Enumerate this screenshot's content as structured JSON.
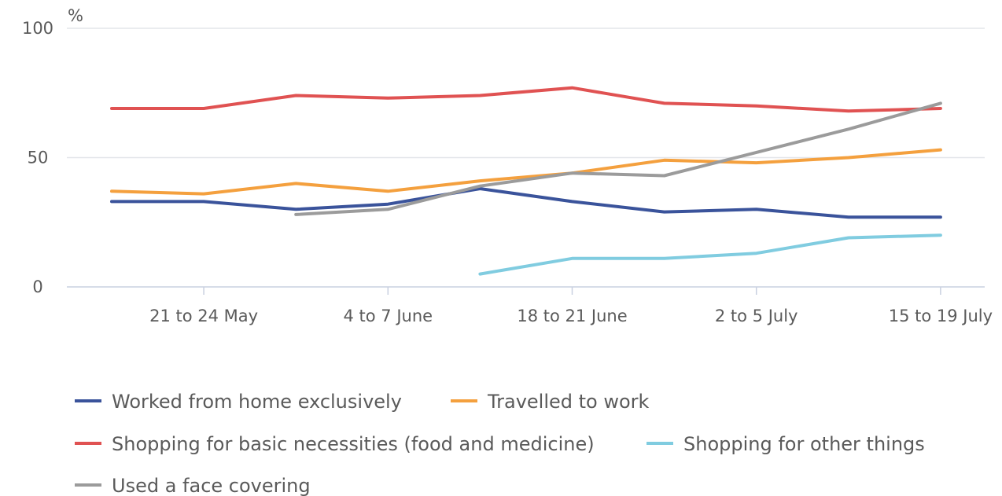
{
  "chart_data": {
    "type": "line",
    "unit_label": "%",
    "ylim": [
      0,
      100
    ],
    "y_ticks": [
      0,
      50,
      100
    ],
    "grid": true,
    "legend_placement": "bottom",
    "categories": [
      "",
      "21 to 24 May",
      "",
      "4 to 7 June",
      "",
      "18 to 21 June",
      "",
      "2 to 5 July",
      "",
      "15 to 19 July"
    ],
    "x_labels": [
      "21 to 24 May",
      "4 to 7 June",
      "18 to 21 June",
      "2 to 5 July",
      "15 to 19 July"
    ],
    "series": [
      {
        "name": "Worked from home exclusively",
        "color": "#3a539b",
        "values": [
          33,
          33,
          30,
          32,
          38,
          33,
          29,
          30,
          27,
          27
        ]
      },
      {
        "name": "Travelled to work",
        "color": "#f4a03e",
        "values": [
          37,
          36,
          40,
          37,
          41,
          44,
          49,
          48,
          50,
          53
        ]
      },
      {
        "name": "Shopping for basic necessities (food and medicine)",
        "color": "#e05252",
        "values": [
          69,
          69,
          74,
          73,
          74,
          77,
          71,
          70,
          68,
          69
        ]
      },
      {
        "name": "Shopping for other things",
        "color": "#80cce0",
        "values": [
          null,
          null,
          null,
          null,
          5,
          11,
          11,
          13,
          19,
          20
        ]
      },
      {
        "name": "Used a face covering",
        "color": "#9b9b9b",
        "values": [
          null,
          null,
          28,
          30,
          39,
          44,
          43,
          52,
          61,
          71
        ]
      }
    ]
  }
}
